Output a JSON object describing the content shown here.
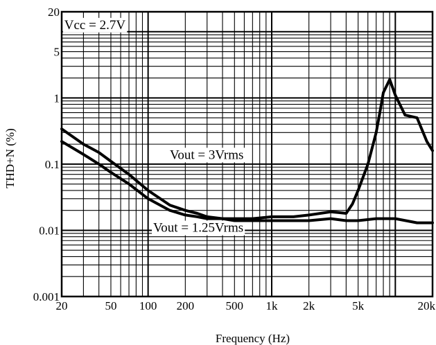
{
  "chart_data": {
    "type": "line",
    "title": "",
    "xlabel": "Frequency (Hz)",
    "ylabel": "THD+N  (%)",
    "x_scale": "log",
    "y_scale": "log",
    "xlim": [
      20,
      20000
    ],
    "ylim": [
      0.001,
      20
    ],
    "grid": true,
    "x_tick_labels": [
      {
        "value": 20,
        "label": "20"
      },
      {
        "value": 50,
        "label": "50"
      },
      {
        "value": 100,
        "label": "100"
      },
      {
        "value": 200,
        "label": "200"
      },
      {
        "value": 500,
        "label": "500"
      },
      {
        "value": 1000,
        "label": "1k"
      },
      {
        "value": 2000,
        "label": "2k"
      },
      {
        "value": 5000,
        "label": "5k"
      },
      {
        "value": 20000,
        "label": "20k"
      }
    ],
    "y_tick_labels": [
      {
        "value": 0.001,
        "label": "0.001"
      },
      {
        "value": 0.01,
        "label": "0.01"
      },
      {
        "value": 0.1,
        "label": "0.1"
      },
      {
        "value": 1,
        "label": "1"
      },
      {
        "value": 5,
        "label": "5"
      },
      {
        "value": 20,
        "label": "20"
      }
    ],
    "annotations": [
      {
        "text": "Vcc = 2.7V",
        "x": 21,
        "y": 11
      },
      {
        "text": "Vout = 3Vrms",
        "x": 150,
        "y": 0.12
      },
      {
        "text": "Vout = 1.25Vrms",
        "x": 110,
        "y": 0.0095
      }
    ],
    "series": [
      {
        "name": "Vout = 3Vrms",
        "x": [
          20,
          30,
          40,
          50,
          70,
          100,
          150,
          200,
          250,
          300,
          400,
          500,
          700,
          1000,
          1500,
          2000,
          3000,
          3500,
          4000,
          4500,
          5000,
          6000,
          7000,
          7500,
          8000,
          9000,
          10000,
          12000,
          15000,
          18000,
          20000
        ],
        "y": [
          0.34,
          0.2,
          0.15,
          0.11,
          0.07,
          0.04,
          0.024,
          0.02,
          0.018,
          0.016,
          0.015,
          0.015,
          0.015,
          0.016,
          0.016,
          0.017,
          0.019,
          0.0185,
          0.018,
          0.025,
          0.04,
          0.1,
          0.3,
          0.6,
          1.2,
          1.9,
          1.1,
          0.55,
          0.5,
          0.22,
          0.16
        ]
      },
      {
        "name": "Vout = 1.25Vrms",
        "x": [
          20,
          30,
          40,
          50,
          70,
          100,
          150,
          200,
          250,
          300,
          400,
          500,
          700,
          1000,
          1500,
          2000,
          3000,
          4000,
          5000,
          7000,
          10000,
          15000,
          20000
        ],
        "y": [
          0.22,
          0.14,
          0.1,
          0.075,
          0.05,
          0.03,
          0.02,
          0.017,
          0.016,
          0.015,
          0.015,
          0.014,
          0.014,
          0.014,
          0.014,
          0.014,
          0.015,
          0.014,
          0.014,
          0.015,
          0.015,
          0.013,
          0.013
        ]
      }
    ]
  }
}
